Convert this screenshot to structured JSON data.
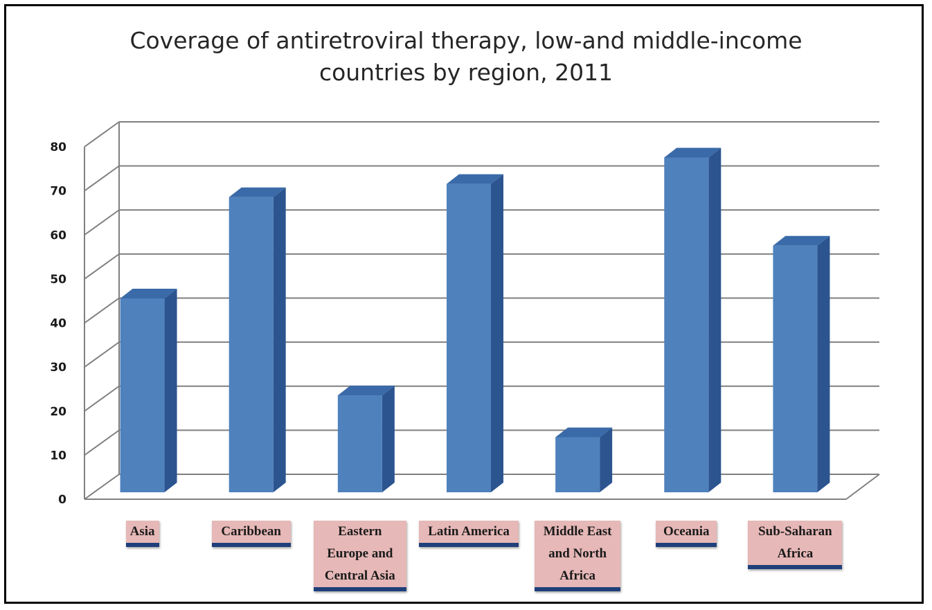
{
  "chart_data": {
    "type": "bar",
    "title": "Coverage of antiretroviral therapy, low-and middle-income\ncountries by region, 2011",
    "categories": [
      "Asia",
      "Caribbean",
      "Eastern Europe and Central Asia",
      "Latin America",
      "Middle East and North Africa",
      "Oceania",
      "Sub-Saharan Africa"
    ],
    "category_labels": [
      [
        "Asia"
      ],
      [
        "Caribbean"
      ],
      [
        "Eastern",
        "Europe and",
        "Central Asia"
      ],
      [
        "Latin America"
      ],
      [
        "Middle East",
        "and North",
        "Africa"
      ],
      [
        "Oceania"
      ],
      [
        "Sub-Saharan",
        "Africa"
      ]
    ],
    "values": [
      44,
      67,
      22,
      70,
      12.5,
      76,
      56
    ],
    "ylim": [
      0,
      80
    ],
    "yticks": [
      0,
      10,
      20,
      30,
      40,
      50,
      60,
      70,
      80
    ],
    "xlabel": "",
    "ylabel": "",
    "grid": true,
    "style": "3d-column",
    "colors": {
      "bar_front": "#4f81bd",
      "bar_side": "#2c5590",
      "bar_top": "#3a6aa8",
      "label_bg": "#e6b8b7",
      "gridline": "#7f7f7f"
    }
  }
}
